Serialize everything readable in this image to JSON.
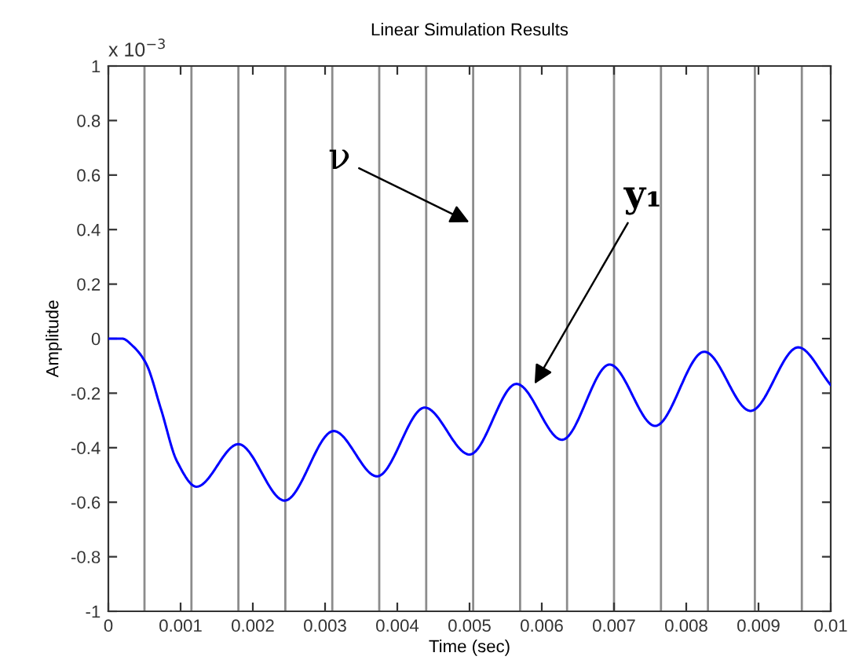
{
  "chart_data": {
    "type": "line",
    "title": "Linear Simulation Results",
    "xlabel": "Time (sec)",
    "ylabel": "Amplitude",
    "x": [
      0,
      0.00019,
      0.00035,
      0.00052,
      0.00073,
      0.00095,
      0.00122,
      0.0018,
      0.00244,
      0.00312,
      0.00372,
      0.00438,
      0.005,
      0.00565,
      0.00628,
      0.00694,
      0.00757,
      0.00825,
      0.00889,
      0.00955,
      0.01
    ],
    "series": [
      {
        "color": "#0000ff",
        "values": [
          0,
          0,
          -0.03,
          -0.09,
          -0.26,
          -0.45,
          -0.543,
          -0.387,
          -0.594,
          -0.339,
          -0.505,
          -0.253,
          -0.425,
          -0.166,
          -0.371,
          -0.095,
          -0.32,
          -0.048,
          -0.265,
          -0.032,
          -0.17
        ]
      }
    ],
    "xlim": [
      0,
      0.01
    ],
    "xticks": [
      0,
      0.001,
      0.002,
      0.003,
      0.004,
      0.005,
      0.006,
      0.007,
      0.008,
      0.009,
      0.01
    ],
    "ylim": [
      -1,
      1
    ],
    "yticks": [
      -1,
      -0.8,
      -0.6,
      -0.4,
      -0.2,
      0,
      0.2,
      0.4,
      0.6,
      0.8,
      1
    ],
    "ref_lines": [
      {
        "axis": "x",
        "value": 0.0005,
        "color": "#8c8c8c"
      },
      {
        "axis": "x",
        "value": 0.00115,
        "color": "#8c8c8c"
      },
      {
        "axis": "x",
        "value": 0.0018,
        "color": "#8c8c8c"
      },
      {
        "axis": "x",
        "value": 0.00245,
        "color": "#8c8c8c"
      },
      {
        "axis": "x",
        "value": 0.0031,
        "color": "#8c8c8c"
      },
      {
        "axis": "x",
        "value": 0.00375,
        "color": "#8c8c8c"
      },
      {
        "axis": "x",
        "value": 0.0044,
        "color": "#8c8c8c"
      },
      {
        "axis": "x",
        "value": 0.00505,
        "color": "#8c8c8c"
      },
      {
        "axis": "x",
        "value": 0.0057,
        "color": "#8c8c8c"
      },
      {
        "axis": "x",
        "value": 0.00635,
        "color": "#8c8c8c"
      },
      {
        "axis": "x",
        "value": 0.007,
        "color": "#8c8c8c"
      },
      {
        "axis": "x",
        "value": 0.00765,
        "color": "#8c8c8c"
      },
      {
        "axis": "x",
        "value": 0.0083,
        "color": "#8c8c8c"
      },
      {
        "axis": "x",
        "value": 0.00895,
        "color": "#8c8c8c"
      },
      {
        "axis": "x",
        "value": 0.0096,
        "color": "#8c8c8c"
      }
    ],
    "annotations": [
      "x 10$^{−3}$",
      {
        "text": "ν",
        "x": 0.00505,
        "y": 0.42
      },
      {
        "text": "y₁",
        "x": 0.00587,
        "y": -0.18
      }
    ],
    "grid": false,
    "legend": false,
    "marker": "none",
    "line_style": "solid"
  }
}
